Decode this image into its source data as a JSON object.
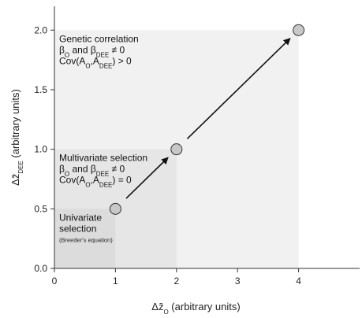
{
  "chart_data": {
    "type": "scatter",
    "xlabel": {
      "symbol": "Δz̄",
      "sub": "O",
      "text": " (arbitrary units)"
    },
    "ylabel": {
      "symbol": "Δz̄",
      "sub": "DEE",
      "text": " (arbitrary units)"
    },
    "xlim": [
      0,
      5
    ],
    "ylim": [
      0,
      2.2
    ],
    "x_ticks": [
      "0",
      "1",
      "2",
      "3",
      "4"
    ],
    "y_ticks": [
      "0.0",
      "0.5",
      "1.0",
      "1.5",
      "2.0"
    ],
    "points": [
      {
        "x": 1,
        "y": 0.5
      },
      {
        "x": 2,
        "y": 1.0
      },
      {
        "x": 4,
        "y": 2.0
      }
    ],
    "arrows": [
      {
        "from": [
          1,
          0.5
        ],
        "to": [
          2,
          1.0
        ]
      },
      {
        "from": [
          2,
          1.0
        ],
        "to": [
          4,
          2.0
        ]
      }
    ],
    "regions": [
      {
        "id": "univariate",
        "x": [
          0,
          1
        ],
        "y": [
          0,
          0.5
        ],
        "fill": "#dcdcdc",
        "title": [
          "Univariate",
          "selection"
        ],
        "note": "(Breeder's equation)"
      },
      {
        "id": "multivariate",
        "x": [
          0,
          2
        ],
        "y": [
          0,
          1.0
        ],
        "fill": "#e6e6e6",
        "title": [
          "Multivariate selection"
        ],
        "line2": {
          "a": "β",
          "a_sub": "O",
          "b": " and β",
          "b_sub": "DEE",
          "c": " ≠ 0"
        },
        "line3": {
          "a": "Cov(A",
          "a_sub": "O",
          "b": ",A",
          "b_sub": "DEE",
          "c": ") = 0"
        }
      },
      {
        "id": "genetic",
        "x": [
          0,
          4
        ],
        "y": [
          0,
          2.0
        ],
        "fill": "#f1f1f1",
        "title": [
          "Genetic correlation"
        ],
        "line2": {
          "a": "β",
          "a_sub": "O",
          "b": " and β",
          "b_sub": "DEE",
          "c": " ≠ 0"
        },
        "line3": {
          "a": "Cov(A",
          "a_sub": "O",
          "b": ",A",
          "b_sub": "DEE",
          "c": ") > 0"
        }
      }
    ],
    "grid": false,
    "legend": "none",
    "colors": {
      "point_fill": "#c8c8c8",
      "point_stroke": "#333333",
      "arrow": "#111111",
      "axis": "#333333"
    }
  }
}
